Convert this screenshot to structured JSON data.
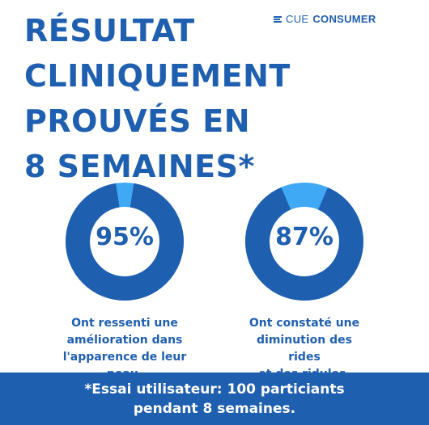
{
  "headline": {
    "lines": [
      "RÉSULTAT",
      "CLINIQUEMENT",
      "PROUVÉS EN",
      "8 SEMAINES*"
    ]
  },
  "brand": {
    "part1": "CUE",
    "part2": "CONSUMER"
  },
  "stats": [
    {
      "percent_label": "95%",
      "value": 0.95,
      "caption_lines": [
        "Ont ressenti une",
        "amélioration dans",
        "l'apparence de leur",
        "peau."
      ]
    },
    {
      "percent_label": "87%",
      "value": 0.87,
      "caption_lines": [
        "Ont constaté une",
        "diminution des",
        "rides",
        "et des ridules."
      ]
    }
  ],
  "footer": {
    "lines": [
      "*Essai utilisateur: 100 particiants",
      "pendant 8 semaines."
    ]
  },
  "colors": {
    "primary": "#1f5fb0",
    "accent": "#3fa9f5",
    "background": "#ffffff"
  }
}
